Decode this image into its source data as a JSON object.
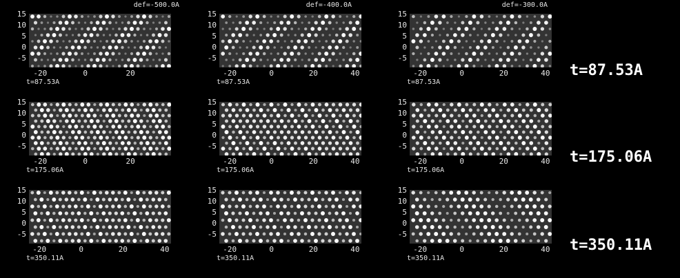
{
  "columns": [
    {
      "def_label": "def=-500.0A"
    },
    {
      "def_label": "def=-400.0A"
    },
    {
      "def_label": "def=-300.0A"
    }
  ],
  "rows": [
    {
      "row_label": "t=87.53A",
      "panel_t_label": "t=87.53A"
    },
    {
      "row_label": "t=175.06A",
      "panel_t_label": "t=175.06A"
    },
    {
      "row_label": "t=350.11A",
      "panel_t_label": "t=350.11A"
    }
  ],
  "y_ticks": [
    "15",
    "10",
    "5",
    "0",
    "-5"
  ],
  "x_ticks_col0": [
    "-20",
    "0",
    "20"
  ],
  "x_ticks_other": [
    "-20",
    "0",
    "20",
    "40"
  ],
  "x_ticks_row3_col0": [
    "-20",
    "0",
    "20",
    "40"
  ]
}
